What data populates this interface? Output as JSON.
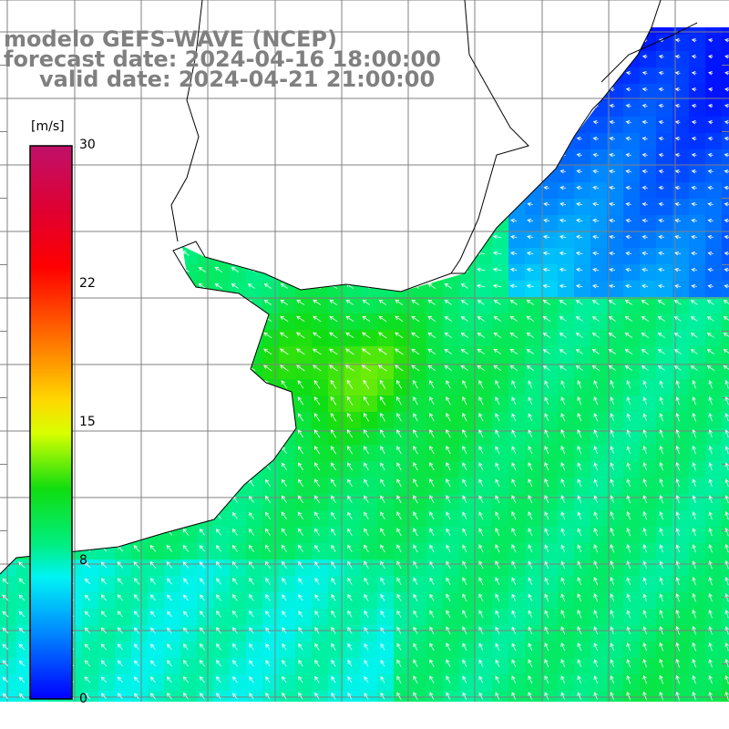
{
  "header": {
    "model": "modelo GEFS-WAVE (NCEP)",
    "forecast": "forecast date: 2024-04-16 18:00:00",
    "valid": "valid date: 2024-04-21 21:00:00"
  },
  "colorbar": {
    "unit": "[m/s]",
    "ticks": [
      "30",
      "22",
      "15",
      "8",
      "0"
    ],
    "tick_values": [
      30,
      22,
      15,
      8,
      0
    ],
    "range": [
      0,
      30
    ]
  },
  "map": {
    "grid": true,
    "field": "wind speed",
    "arrow_direction": "mostly from south-east toward north-west, turning westward in the north-east corner",
    "colors": {
      "land": "#ffffff",
      "coast": "#000000",
      "grid": "#808080",
      "arrows": "#ffffff"
    }
  }
}
